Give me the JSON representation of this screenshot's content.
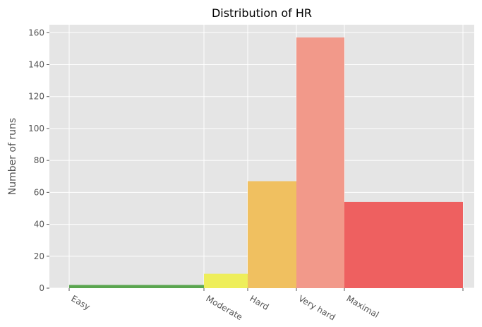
{
  "chart_data": {
    "type": "bar",
    "title": "Distribution of HR",
    "xlabel": "",
    "ylabel": "Number of runs",
    "ylim": [
      0,
      165
    ],
    "yticks": [
      0,
      20,
      40,
      60,
      80,
      100,
      120,
      140,
      160
    ],
    "grid": true,
    "style": "ggplot",
    "legend": "none",
    "bins": [
      {
        "label": "Easy",
        "value": 2,
        "color": "#5aa54f"
      },
      {
        "label": "Moderate",
        "value": 9,
        "color": "#eeee5a"
      },
      {
        "label": "Hard",
        "value": 67,
        "color": "#f0c060"
      },
      {
        "label": "Very hard",
        "value": 157,
        "color": "#f2998a"
      },
      {
        "label": "Maximal",
        "value": 54,
        "color": "#ee6060"
      }
    ]
  }
}
